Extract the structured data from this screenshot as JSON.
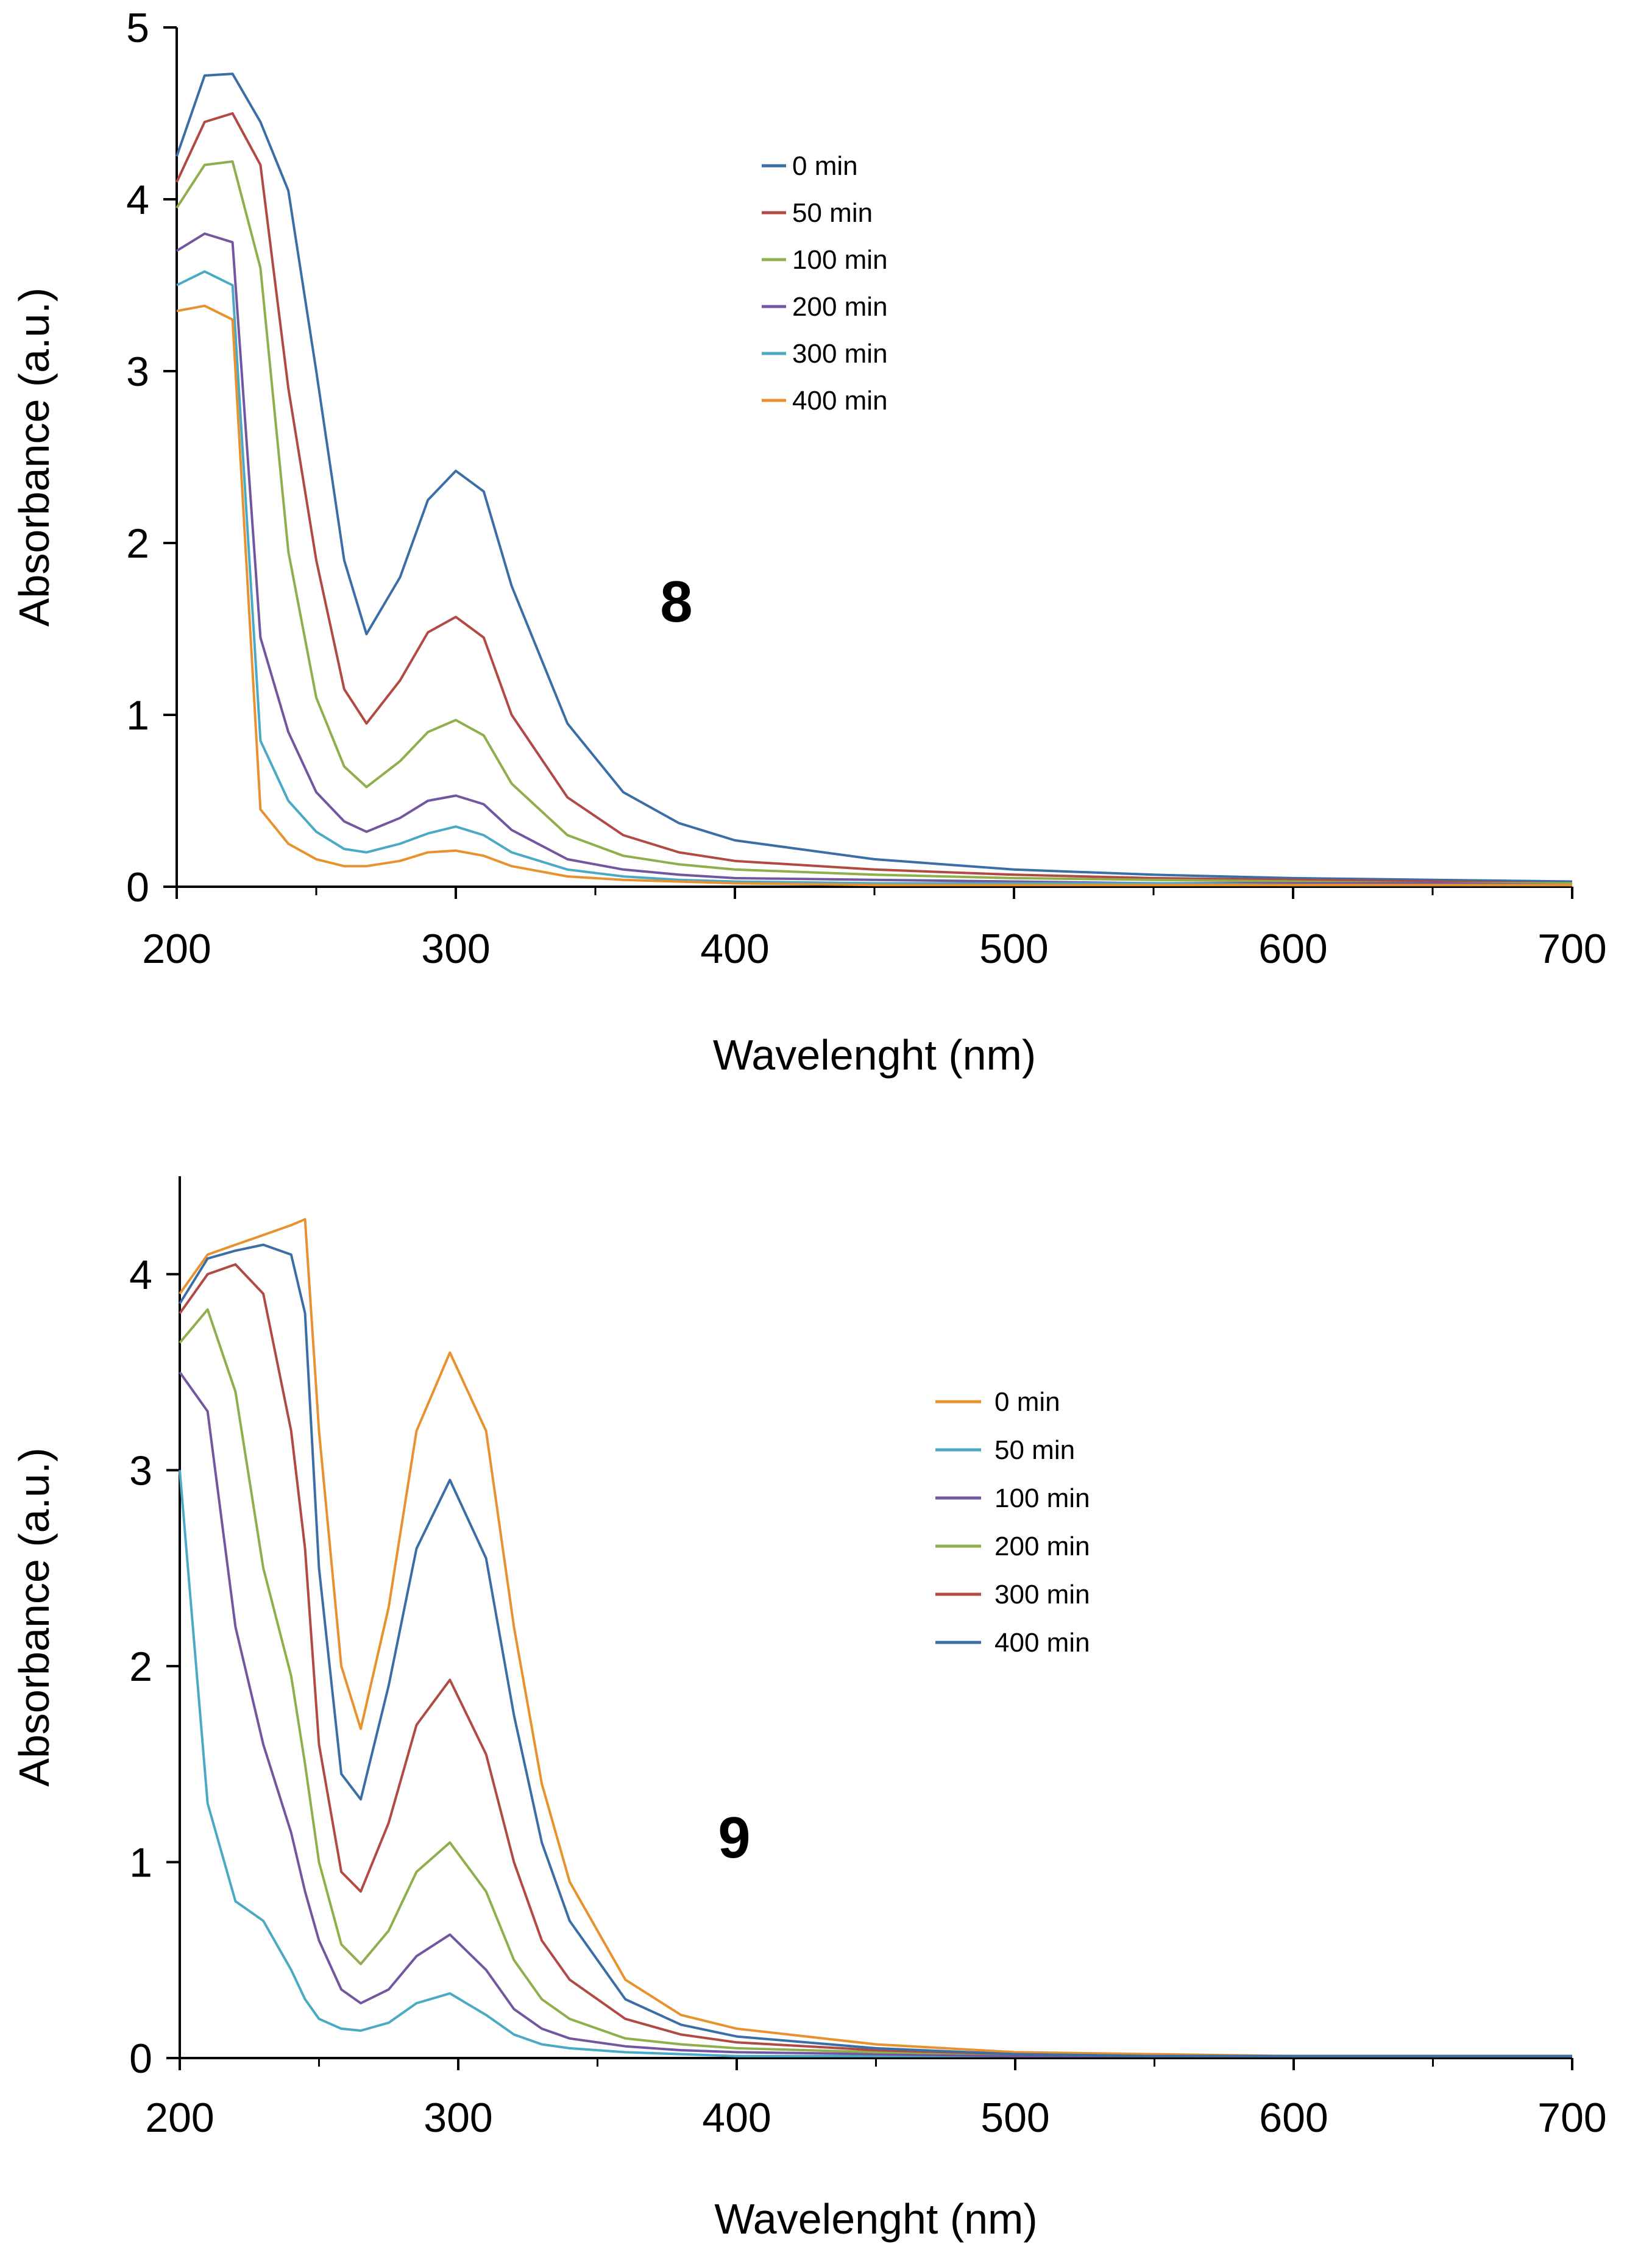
{
  "chart_data": [
    {
      "type": "line",
      "panel_label": "8",
      "xlabel": "Wavelenght (nm)",
      "ylabel": "Absorbance (a.u.)",
      "xlim": [
        200,
        700
      ],
      "ylim": [
        0,
        5
      ],
      "xticks": [
        "200",
        "300",
        "400",
        "500",
        "600",
        "700"
      ],
      "yticks": [
        "0",
        "1",
        "2",
        "3",
        "4",
        "5"
      ],
      "legend_position": "top-center",
      "grid": false,
      "x": [
        200,
        210,
        220,
        230,
        240,
        250,
        260,
        268,
        280,
        290,
        300,
        310,
        320,
        340,
        360,
        380,
        400,
        450,
        500,
        550,
        600,
        650,
        700
      ],
      "series": [
        {
          "name": "0 min",
          "color": "#3a6ea5",
          "values": [
            4.25,
            4.72,
            4.73,
            4.45,
            4.05,
            3.0,
            1.9,
            1.47,
            1.8,
            2.25,
            2.42,
            2.3,
            1.75,
            0.95,
            0.55,
            0.37,
            0.27,
            0.16,
            0.1,
            0.07,
            0.05,
            0.04,
            0.03
          ]
        },
        {
          "name": "50 min",
          "color": "#b04a43",
          "values": [
            4.1,
            4.45,
            4.5,
            4.2,
            2.9,
            1.9,
            1.15,
            0.95,
            1.2,
            1.48,
            1.57,
            1.45,
            1.0,
            0.52,
            0.3,
            0.2,
            0.15,
            0.1,
            0.07,
            0.05,
            0.04,
            0.03,
            0.02
          ]
        },
        {
          "name": "100 min",
          "color": "#8fae4c",
          "values": [
            3.95,
            4.2,
            4.22,
            3.6,
            1.95,
            1.1,
            0.7,
            0.58,
            0.73,
            0.9,
            0.97,
            0.88,
            0.6,
            0.3,
            0.18,
            0.13,
            0.1,
            0.07,
            0.05,
            0.04,
            0.03,
            0.02,
            0.02
          ]
        },
        {
          "name": "200 min",
          "color": "#7356a0",
          "values": [
            3.7,
            3.8,
            3.75,
            1.45,
            0.9,
            0.55,
            0.38,
            0.32,
            0.4,
            0.5,
            0.53,
            0.48,
            0.33,
            0.16,
            0.1,
            0.07,
            0.05,
            0.04,
            0.03,
            0.02,
            0.02,
            0.02,
            0.01
          ]
        },
        {
          "name": "300 min",
          "color": "#4aaac5",
          "values": [
            3.5,
            3.58,
            3.5,
            0.85,
            0.5,
            0.32,
            0.22,
            0.2,
            0.25,
            0.31,
            0.35,
            0.3,
            0.2,
            0.1,
            0.06,
            0.04,
            0.03,
            0.02,
            0.02,
            0.02,
            0.01,
            0.01,
            0.01
          ]
        },
        {
          "name": "400 min",
          "color": "#e8922f",
          "values": [
            3.35,
            3.38,
            3.3,
            0.45,
            0.25,
            0.16,
            0.12,
            0.12,
            0.15,
            0.2,
            0.21,
            0.18,
            0.12,
            0.06,
            0.04,
            0.03,
            0.02,
            0.01,
            0.01,
            0.01,
            0.01,
            0.01,
            0.01
          ]
        }
      ]
    },
    {
      "type": "line",
      "panel_label": "9",
      "xlabel": "Wavelenght (nm)",
      "ylabel": "Absorbance (a.u.)",
      "xlim": [
        200,
        700
      ],
      "ylim": [
        0,
        4.5
      ],
      "xticks": [
        "200",
        "300",
        "400",
        "500",
        "600",
        "700"
      ],
      "yticks": [
        "0",
        "1",
        "2",
        "3",
        "4"
      ],
      "legend_position": "center-right",
      "grid": false,
      "x": [
        200,
        210,
        220,
        230,
        240,
        245,
        250,
        258,
        265,
        275,
        285,
        297,
        310,
        320,
        330,
        340,
        360,
        380,
        400,
        450,
        500,
        550,
        600,
        650,
        700
      ],
      "series": [
        {
          "name": "0 min",
          "color": "#e8922f",
          "values": [
            3.9,
            4.1,
            4.15,
            4.2,
            4.25,
            4.28,
            3.2,
            2.0,
            1.68,
            2.3,
            3.2,
            3.6,
            3.2,
            2.2,
            1.4,
            0.9,
            0.4,
            0.22,
            0.15,
            0.07,
            0.03,
            0.02,
            0.01,
            0.01,
            0.01
          ]
        },
        {
          "name": "50 min",
          "color": "#4aaac5",
          "values": [
            3.0,
            1.3,
            0.8,
            0.7,
            0.45,
            0.3,
            0.2,
            0.15,
            0.14,
            0.18,
            0.28,
            0.33,
            0.22,
            0.12,
            0.07,
            0.05,
            0.03,
            0.02,
            0.01,
            0.01,
            0.01,
            0.01,
            0.01,
            0.01,
            0.01
          ]
        },
        {
          "name": "100 min",
          "color": "#7356a0",
          "values": [
            3.5,
            3.3,
            2.2,
            1.6,
            1.15,
            0.85,
            0.6,
            0.35,
            0.28,
            0.35,
            0.52,
            0.63,
            0.45,
            0.25,
            0.15,
            0.1,
            0.06,
            0.04,
            0.03,
            0.02,
            0.01,
            0.01,
            0.01,
            0.01,
            0.01
          ]
        },
        {
          "name": "200 min",
          "color": "#8fae4c",
          "values": [
            3.65,
            3.82,
            3.4,
            2.5,
            1.95,
            1.5,
            1.0,
            0.58,
            0.48,
            0.65,
            0.95,
            1.1,
            0.85,
            0.5,
            0.3,
            0.2,
            0.1,
            0.07,
            0.05,
            0.03,
            0.02,
            0.01,
            0.01,
            0.01,
            0.01
          ]
        },
        {
          "name": "300 min",
          "color": "#b04a43",
          "values": [
            3.8,
            4.0,
            4.05,
            3.9,
            3.2,
            2.6,
            1.6,
            0.95,
            0.85,
            1.2,
            1.7,
            1.93,
            1.55,
            1.0,
            0.6,
            0.4,
            0.2,
            0.12,
            0.08,
            0.04,
            0.02,
            0.01,
            0.01,
            0.01,
            0.01
          ]
        },
        {
          "name": "400 min",
          "color": "#3a6ea5",
          "values": [
            3.85,
            4.08,
            4.12,
            4.15,
            4.1,
            3.8,
            2.5,
            1.45,
            1.32,
            1.9,
            2.6,
            2.95,
            2.55,
            1.75,
            1.1,
            0.7,
            0.3,
            0.17,
            0.11,
            0.05,
            0.02,
            0.01,
            0.01,
            0.01,
            0.01
          ]
        }
      ]
    }
  ]
}
